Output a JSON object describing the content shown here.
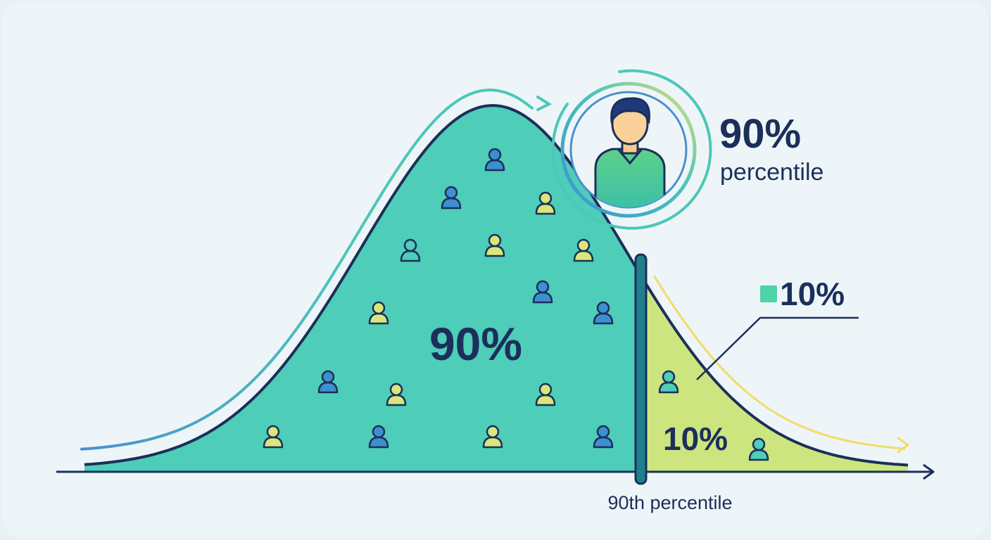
{
  "callout": {
    "value": "90%",
    "label": "percentile"
  },
  "legend": {
    "value": "10%"
  },
  "regions": {
    "body": "90%",
    "tail": "10%"
  },
  "axis": {
    "marker": "90th percentile"
  }
}
